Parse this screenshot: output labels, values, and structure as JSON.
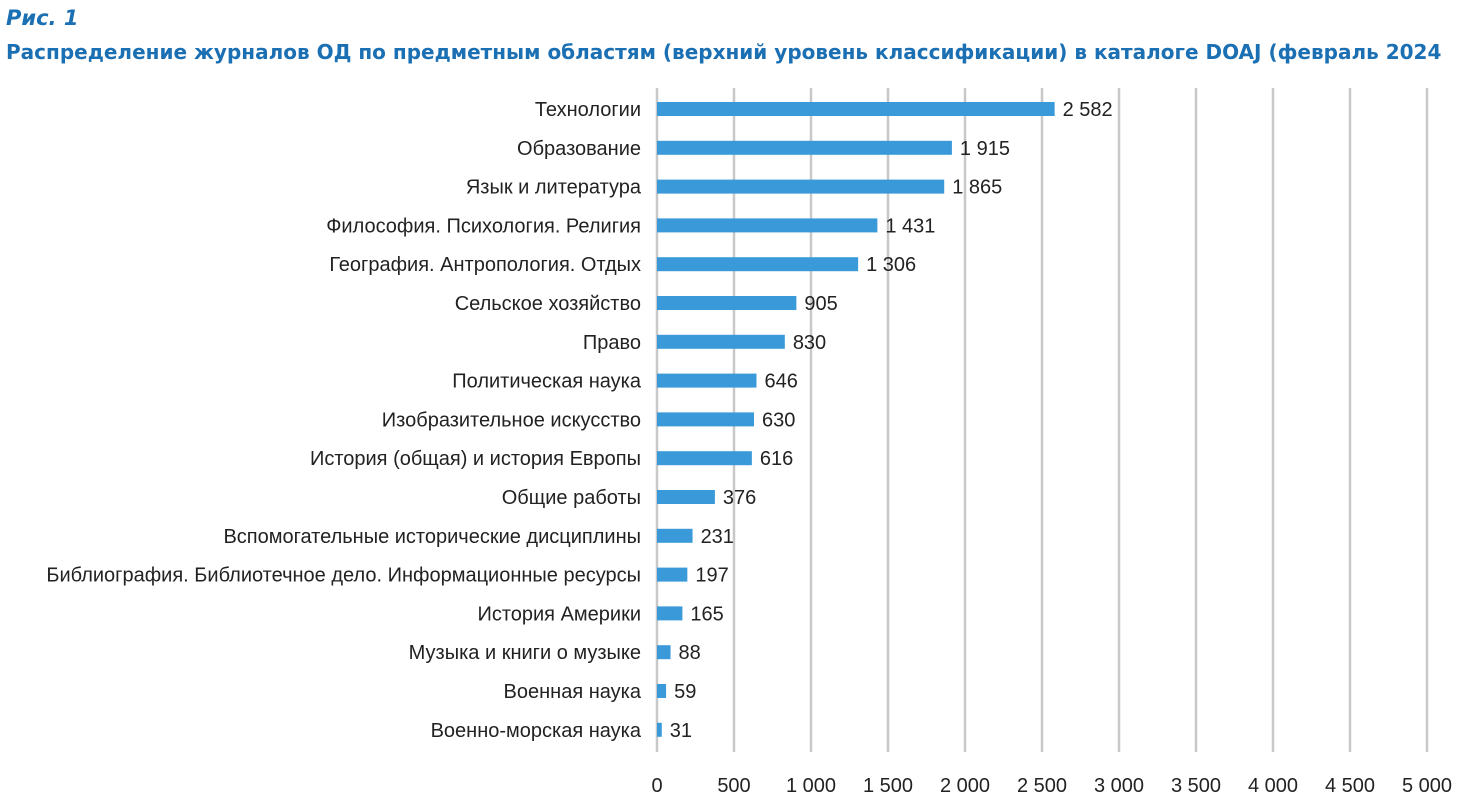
{
  "figure": {
    "label": "Рис. 1",
    "title": "Распределение журналов ОД по предметным областям (верхний уровень классификации) в каталоге DOAJ (февраль 2024"
  },
  "colors": {
    "bar": "#3a9ad9",
    "grid": "#c8c8c8",
    "title": "#1b6fb3",
    "text": "#222222"
  },
  "chart_data": {
    "type": "bar",
    "orientation": "horizontal",
    "title": "Распределение журналов ОД по предметным областям (верхний уровень классификации) в каталоге DOAJ (февраль 2024",
    "xlabel": "",
    "ylabel": "",
    "xlim": [
      0,
      5000
    ],
    "xticks": [
      0,
      500,
      1000,
      1500,
      2000,
      2500,
      3000,
      3500,
      4000,
      4500,
      5000
    ],
    "xtick_labels": [
      "0",
      "500",
      "1 000",
      "1 500",
      "2 000",
      "2 500",
      "3 000",
      "3 500",
      "4 000",
      "4 500",
      "5 000"
    ],
    "grid": "vertical",
    "categories": [
      "Технологии",
      "Образование",
      "Язык и литература",
      "Философия. Психология. Религия",
      "География. Антропология. Отдых",
      "Сельское хозяйство",
      "Право",
      "Политическая наука",
      "Изобразительное искусство",
      "История (общая) и история Европы",
      "Общие работы",
      "Вспомогательные исторические дисциплины",
      "Библиография. Библиотечное дело. Информационные ресурсы",
      "История Америки",
      "Музыка и книги о музыке",
      "Военная наука",
      "Военно-морская наука"
    ],
    "values": [
      2582,
      1915,
      1865,
      1431,
      1306,
      905,
      830,
      646,
      630,
      616,
      376,
      231,
      197,
      165,
      88,
      59,
      31
    ],
    "value_labels": [
      "2 582",
      "1 915",
      "1 865",
      "1 431",
      "1 306",
      "905",
      "830",
      "646",
      "630",
      "616",
      "376",
      "231",
      "197",
      "165",
      "88",
      "59",
      "31"
    ]
  }
}
